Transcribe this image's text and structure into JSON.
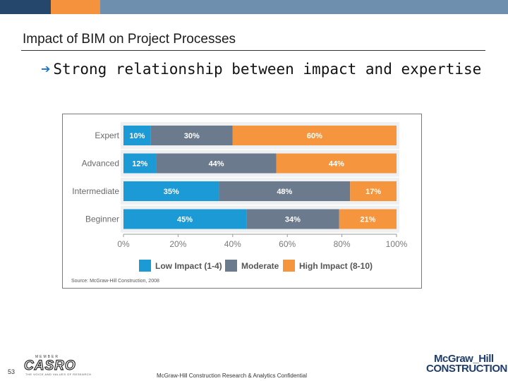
{
  "slide": {
    "title": "Impact of BIM on Project Processes",
    "bullet": "Strong relationship between impact and expertise",
    "page_number": "53",
    "footer": "McGraw-Hill Construction Research & Analytics Confidential",
    "logo_casro": "CASRO",
    "logo_casro_top": "MEMBER",
    "logo_casro_sub": "THE VOICE AND VALUES OF RESEARCH",
    "brand_line1": "McGraw_Hill",
    "brand_line2": "CONSTRUCTION"
  },
  "colors": {
    "topbar": [
      "#24476b",
      "#f5923e",
      "#6f8fae"
    ],
    "low": "#1b9ad6",
    "moderate": "#6b7a8c",
    "high": "#f5963f",
    "brand": "#1e3d6b"
  },
  "chart_data": {
    "type": "bar",
    "orientation": "horizontal",
    "stacked": true,
    "categories": [
      "Expert",
      "Advanced",
      "Intermediate",
      "Beginner"
    ],
    "series": [
      {
        "name": "Low Impact (1-4)",
        "values": [
          10,
          12,
          35,
          45
        ],
        "labels": [
          "10%",
          "12%",
          "35%",
          "45%"
        ]
      },
      {
        "name": "Moderate",
        "values": [
          30,
          44,
          48,
          34
        ],
        "labels": [
          "30%",
          "44%",
          "48%",
          "34%"
        ]
      },
      {
        "name": "High Impact (8-10)",
        "values": [
          60,
          44,
          17,
          21
        ],
        "labels": [
          "60%",
          "44%",
          "17%",
          "21%"
        ]
      }
    ],
    "xlim": [
      0,
      100
    ],
    "xticks": [
      "0%",
      "20%",
      "40%",
      "60%",
      "80%",
      "100%"
    ],
    "legend_position": "bottom",
    "source": "Source: McGraw-Hill Construction, 2008"
  }
}
